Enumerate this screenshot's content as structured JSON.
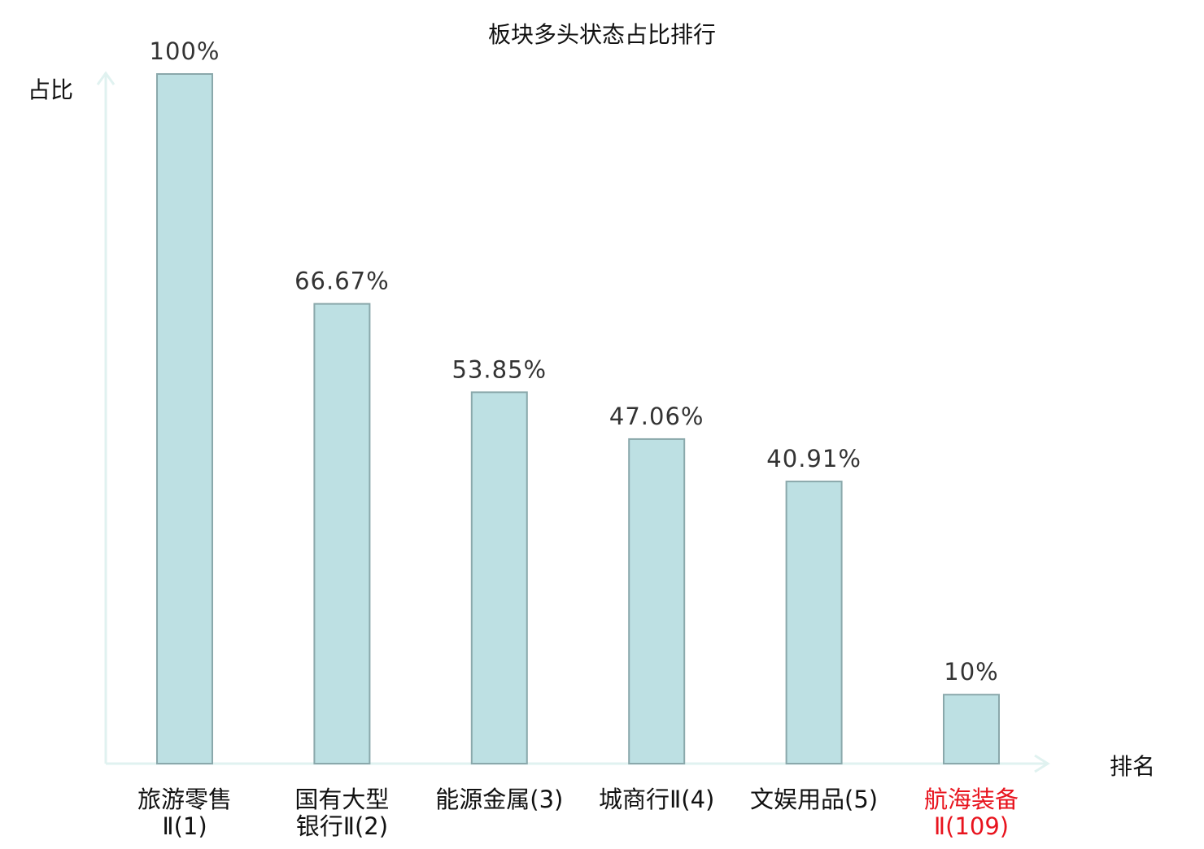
{
  "chart_data": {
    "type": "bar",
    "title": "板块多头状态占比排行",
    "ylabel": "占比",
    "xlabel": "排名",
    "ylim": [
      0,
      100
    ],
    "grid": false,
    "categories": [
      {
        "name_lines": [
          "旅游零售",
          "Ⅱ(1)"
        ],
        "highlight": false
      },
      {
        "name_lines": [
          "国有大型",
          "银行Ⅱ(2)"
        ],
        "highlight": false
      },
      {
        "name_lines": [
          "能源金属(3)"
        ],
        "highlight": false
      },
      {
        "name_lines": [
          "城商行Ⅱ(4)"
        ],
        "highlight": false
      },
      {
        "name_lines": [
          "文娱用品(5)"
        ],
        "highlight": false
      },
      {
        "name_lines": [
          "航海装备",
          "Ⅱ(109)"
        ],
        "highlight": true
      }
    ],
    "values": [
      100,
      66.67,
      53.85,
      47.06,
      40.91,
      10
    ],
    "value_labels": [
      "100%",
      "66.67%",
      "53.85%",
      "47.06%",
      "40.91%",
      "10%"
    ],
    "colors": {
      "bar_fill": "#bde0e3",
      "bar_stroke": "#8aa8ab",
      "axis": "#e0f2f0",
      "value_text": "#333333",
      "category_text": "#111111",
      "highlight_text": "#e8141e"
    }
  }
}
